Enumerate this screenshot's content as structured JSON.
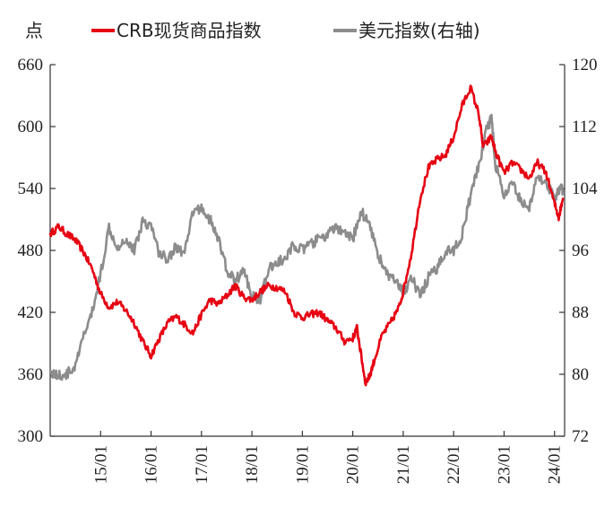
{
  "legend": {
    "unit": "点",
    "series0": "CRB现货商品指数",
    "series1": "美元指数(右轴)"
  },
  "chart_data": {
    "type": "line",
    "x_ticks": [
      "15/01",
      "16/01",
      "17/01",
      "18/01",
      "19/01",
      "20/01",
      "21/01",
      "22/01",
      "23/01",
      "24/01"
    ],
    "y_left": {
      "min": 300,
      "max": 660,
      "ticks": [
        300,
        360,
        420,
        480,
        540,
        600,
        660
      ]
    },
    "y_right": {
      "min": 72,
      "max": 120,
      "ticks": [
        72,
        80,
        88,
        96,
        104,
        112,
        120
      ]
    },
    "grid": false,
    "legend_position": "top",
    "series": [
      {
        "name": "CRB现货商品指数",
        "axis": "left",
        "color": "#e60012",
        "points": [
          [
            "14/01",
            496
          ],
          [
            "14/03",
            503
          ],
          [
            "14/05",
            496
          ],
          [
            "14/07",
            490
          ],
          [
            "14/09",
            478
          ],
          [
            "14/11",
            462
          ],
          [
            "15/01",
            438
          ],
          [
            "15/03",
            425
          ],
          [
            "15/05",
            430
          ],
          [
            "15/07",
            422
          ],
          [
            "15/09",
            410
          ],
          [
            "15/11",
            392
          ],
          [
            "16/01",
            378
          ],
          [
            "16/03",
            395
          ],
          [
            "16/05",
            410
          ],
          [
            "16/07",
            416
          ],
          [
            "16/09",
            408
          ],
          [
            "16/11",
            400
          ],
          [
            "17/01",
            418
          ],
          [
            "17/03",
            432
          ],
          [
            "17/05",
            428
          ],
          [
            "17/07",
            436
          ],
          [
            "17/09",
            446
          ],
          [
            "17/11",
            435
          ],
          [
            "18/01",
            432
          ],
          [
            "18/03",
            440
          ],
          [
            "18/05",
            446
          ],
          [
            "18/07",
            444
          ],
          [
            "18/09",
            440
          ],
          [
            "18/11",
            420
          ],
          [
            "19/01",
            415
          ],
          [
            "19/03",
            418
          ],
          [
            "19/05",
            420
          ],
          [
            "19/07",
            412
          ],
          [
            "19/09",
            405
          ],
          [
            "19/11",
            392
          ],
          [
            "20/01",
            395
          ],
          [
            "20/02",
            405
          ],
          [
            "20/03",
            378
          ],
          [
            "20/04",
            352
          ],
          [
            "20/05",
            358
          ],
          [
            "20/06",
            372
          ],
          [
            "20/08",
            398
          ],
          [
            "20/10",
            410
          ],
          [
            "20/12",
            425
          ],
          [
            "21/01",
            440
          ],
          [
            "21/03",
            478
          ],
          [
            "21/05",
            530
          ],
          [
            "21/07",
            560
          ],
          [
            "21/09",
            568
          ],
          [
            "21/11",
            572
          ],
          [
            "22/01",
            590
          ],
          [
            "22/03",
            620
          ],
          [
            "22/05",
            638
          ],
          [
            "22/07",
            612
          ],
          [
            "22/08",
            580
          ],
          [
            "22/10",
            590
          ],
          [
            "22/11",
            575
          ],
          [
            "23/01",
            555
          ],
          [
            "23/03",
            565
          ],
          [
            "23/05",
            558
          ],
          [
            "23/07",
            550
          ],
          [
            "23/09",
            565
          ],
          [
            "23/11",
            555
          ],
          [
            "24/01",
            525
          ],
          [
            "24/02",
            512
          ],
          [
            "24/03",
            530
          ]
        ]
      },
      {
        "name": "美元指数(右轴)",
        "axis": "right",
        "color": "#8c8c8c",
        "points": [
          [
            "14/01",
            80.4
          ],
          [
            "14/03",
            79.8
          ],
          [
            "14/05",
            80.0
          ],
          [
            "14/07",
            81.0
          ],
          [
            "14/09",
            85.0
          ],
          [
            "14/11",
            88.0
          ],
          [
            "15/01",
            93.0
          ],
          [
            "15/03",
            99.0
          ],
          [
            "15/05",
            96.5
          ],
          [
            "15/07",
            97.5
          ],
          [
            "15/09",
            96.0
          ],
          [
            "15/11",
            99.8
          ],
          [
            "16/01",
            99.2
          ],
          [
            "16/03",
            95.5
          ],
          [
            "16/05",
            95.0
          ],
          [
            "16/07",
            96.5
          ],
          [
            "16/09",
            95.5
          ],
          [
            "16/11",
            101.0
          ],
          [
            "17/01",
            101.5
          ],
          [
            "17/03",
            100.0
          ],
          [
            "17/05",
            97.5
          ],
          [
            "17/07",
            93.5
          ],
          [
            "17/09",
            92.0
          ],
          [
            "17/11",
            93.5
          ],
          [
            "18/01",
            90.0
          ],
          [
            "18/03",
            89.8
          ],
          [
            "18/05",
            93.5
          ],
          [
            "18/07",
            94.5
          ],
          [
            "18/09",
            94.8
          ],
          [
            "18/11",
            96.8
          ],
          [
            "19/01",
            96.0
          ],
          [
            "19/03",
            96.8
          ],
          [
            "19/05",
            97.5
          ],
          [
            "19/07",
            98.0
          ],
          [
            "19/09",
            99.0
          ],
          [
            "19/11",
            98.0
          ],
          [
            "20/01",
            97.5
          ],
          [
            "20/03",
            101.0
          ],
          [
            "20/05",
            99.5
          ],
          [
            "20/07",
            95.5
          ],
          [
            "20/09",
            93.0
          ],
          [
            "20/11",
            92.0
          ],
          [
            "21/01",
            90.5
          ],
          [
            "21/03",
            92.5
          ],
          [
            "21/05",
            90.0
          ],
          [
            "21/07",
            92.5
          ],
          [
            "21/09",
            93.5
          ],
          [
            "21/11",
            96.0
          ],
          [
            "22/01",
            96.0
          ],
          [
            "22/03",
            98.0
          ],
          [
            "22/05",
            103.0
          ],
          [
            "22/07",
            107.0
          ],
          [
            "22/09",
            112.0
          ],
          [
            "22/10",
            113.0
          ],
          [
            "22/11",
            107.0
          ],
          [
            "23/01",
            103.0
          ],
          [
            "23/03",
            104.5
          ],
          [
            "23/05",
            102.5
          ],
          [
            "23/07",
            101.5
          ],
          [
            "23/09",
            105.5
          ],
          [
            "23/11",
            105.0
          ],
          [
            "24/01",
            102.5
          ],
          [
            "24/02",
            104.0
          ],
          [
            "24/03",
            103.8
          ]
        ]
      }
    ]
  }
}
